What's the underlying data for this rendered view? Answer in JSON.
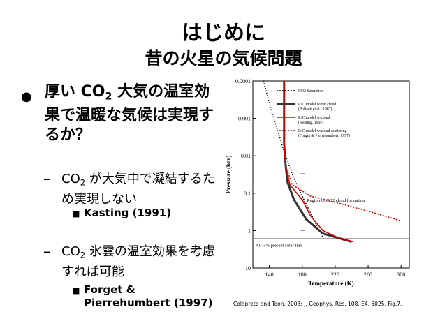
{
  "title": "はじめに",
  "subtitle": "昔の火星の気候問題",
  "bullet1": {
    "prefix": "厚い CO",
    "sub": "2",
    "suffix": " 大気の温室効果で温暖な気候は実現するか？"
  },
  "sub1": {
    "prefix": "CO",
    "sub": "2",
    "suffix": " が大気中で凝結するため実現しない",
    "ref": "Kasting (1991)"
  },
  "sub2": {
    "prefix": "CO",
    "sub": "2",
    "suffix": " 氷雲の温室効果を考慮すれば可能",
    "ref": "Forget & Pierrehumbert (1997)"
  },
  "caption": "Colaprete and Toon, 2003: J. Geophys. Res. 108. E4, 5025, Fig.7.",
  "chart_data": {
    "type": "line",
    "xlabel": "Temperature (K)",
    "ylabel": "Pressure (bar)",
    "xlim": [
      120,
      310
    ],
    "ylim": [
      0.0001,
      10
    ],
    "y_scale": "log",
    "y_inverted": true,
    "xticks": [
      "140",
      "180",
      "220",
      "260",
      "300"
    ],
    "yticks": [
      "0.0001",
      "0.001",
      "0.01",
      "0.1",
      "1",
      "10"
    ],
    "legend": [
      {
        "label": "CO2 Saturation",
        "style": "dotted",
        "color": "#000000"
      },
      {
        "label": "R/C model w/out cloud\n(Pollack et al., 1987)",
        "style": "solid",
        "color": "#333333"
      },
      {
        "label": "R/C model w/cloud\n(Kasting, 1991)",
        "style": "solid",
        "color": "#dd0000"
      },
      {
        "label": "R/C model w/cloud scattering\n(Forget & Pierrehumbert, 1997)",
        "style": "dotted",
        "color": "#dd0000"
      }
    ],
    "annotations": [
      {
        "text": "Region of CO2 cloud formation"
      },
      {
        "text": "At 75% present solar flux"
      }
    ],
    "series": [
      {
        "name": "CO2 Saturation",
        "color": "#000000",
        "style": "dotted",
        "points": [
          [
            133,
            0.0001
          ],
          [
            140,
            0.0004
          ],
          [
            148,
            0.0015
          ],
          [
            158,
            0.008
          ],
          [
            170,
            0.04
          ],
          [
            182,
            0.15
          ],
          [
            194,
            0.5
          ],
          [
            205,
            1.5
          ]
        ]
      },
      {
        "name": "R/C model w/out cloud (Pollack et al., 1987)",
        "color": "#333333",
        "style": "solid",
        "points": [
          [
            158,
            0.0001
          ],
          [
            158,
            0.001
          ],
          [
            158,
            0.005
          ],
          [
            160,
            0.02
          ],
          [
            162,
            0.05
          ],
          [
            170,
            0.15
          ],
          [
            185,
            0.5
          ],
          [
            205,
            1.2
          ],
          [
            240,
            2
          ]
        ]
      },
      {
        "name": "R/C model w/cloud (Kasting, 1991)",
        "color": "#dd0000",
        "style": "solid",
        "points": [
          [
            158,
            0.0001
          ],
          [
            158,
            0.001
          ],
          [
            158,
            0.005
          ],
          [
            160,
            0.02
          ],
          [
            165,
            0.06
          ],
          [
            180,
            0.15
          ],
          [
            190,
            0.4
          ],
          [
            205,
            1.0
          ],
          [
            225,
            1.6
          ],
          [
            242,
            2
          ]
        ]
      },
      {
        "name": "R/C model w/cloud scattering (Forget & Pierrehumbert, 1997)",
        "color": "#dd0000",
        "style": "dotted",
        "points": [
          [
            158,
            0.0001
          ],
          [
            158,
            0.001
          ],
          [
            158,
            0.005
          ],
          [
            160,
            0.02
          ],
          [
            168,
            0.06
          ],
          [
            190,
            0.12
          ],
          [
            230,
            0.2
          ],
          [
            270,
            0.35
          ],
          [
            300,
            0.55
          ]
        ]
      }
    ]
  }
}
